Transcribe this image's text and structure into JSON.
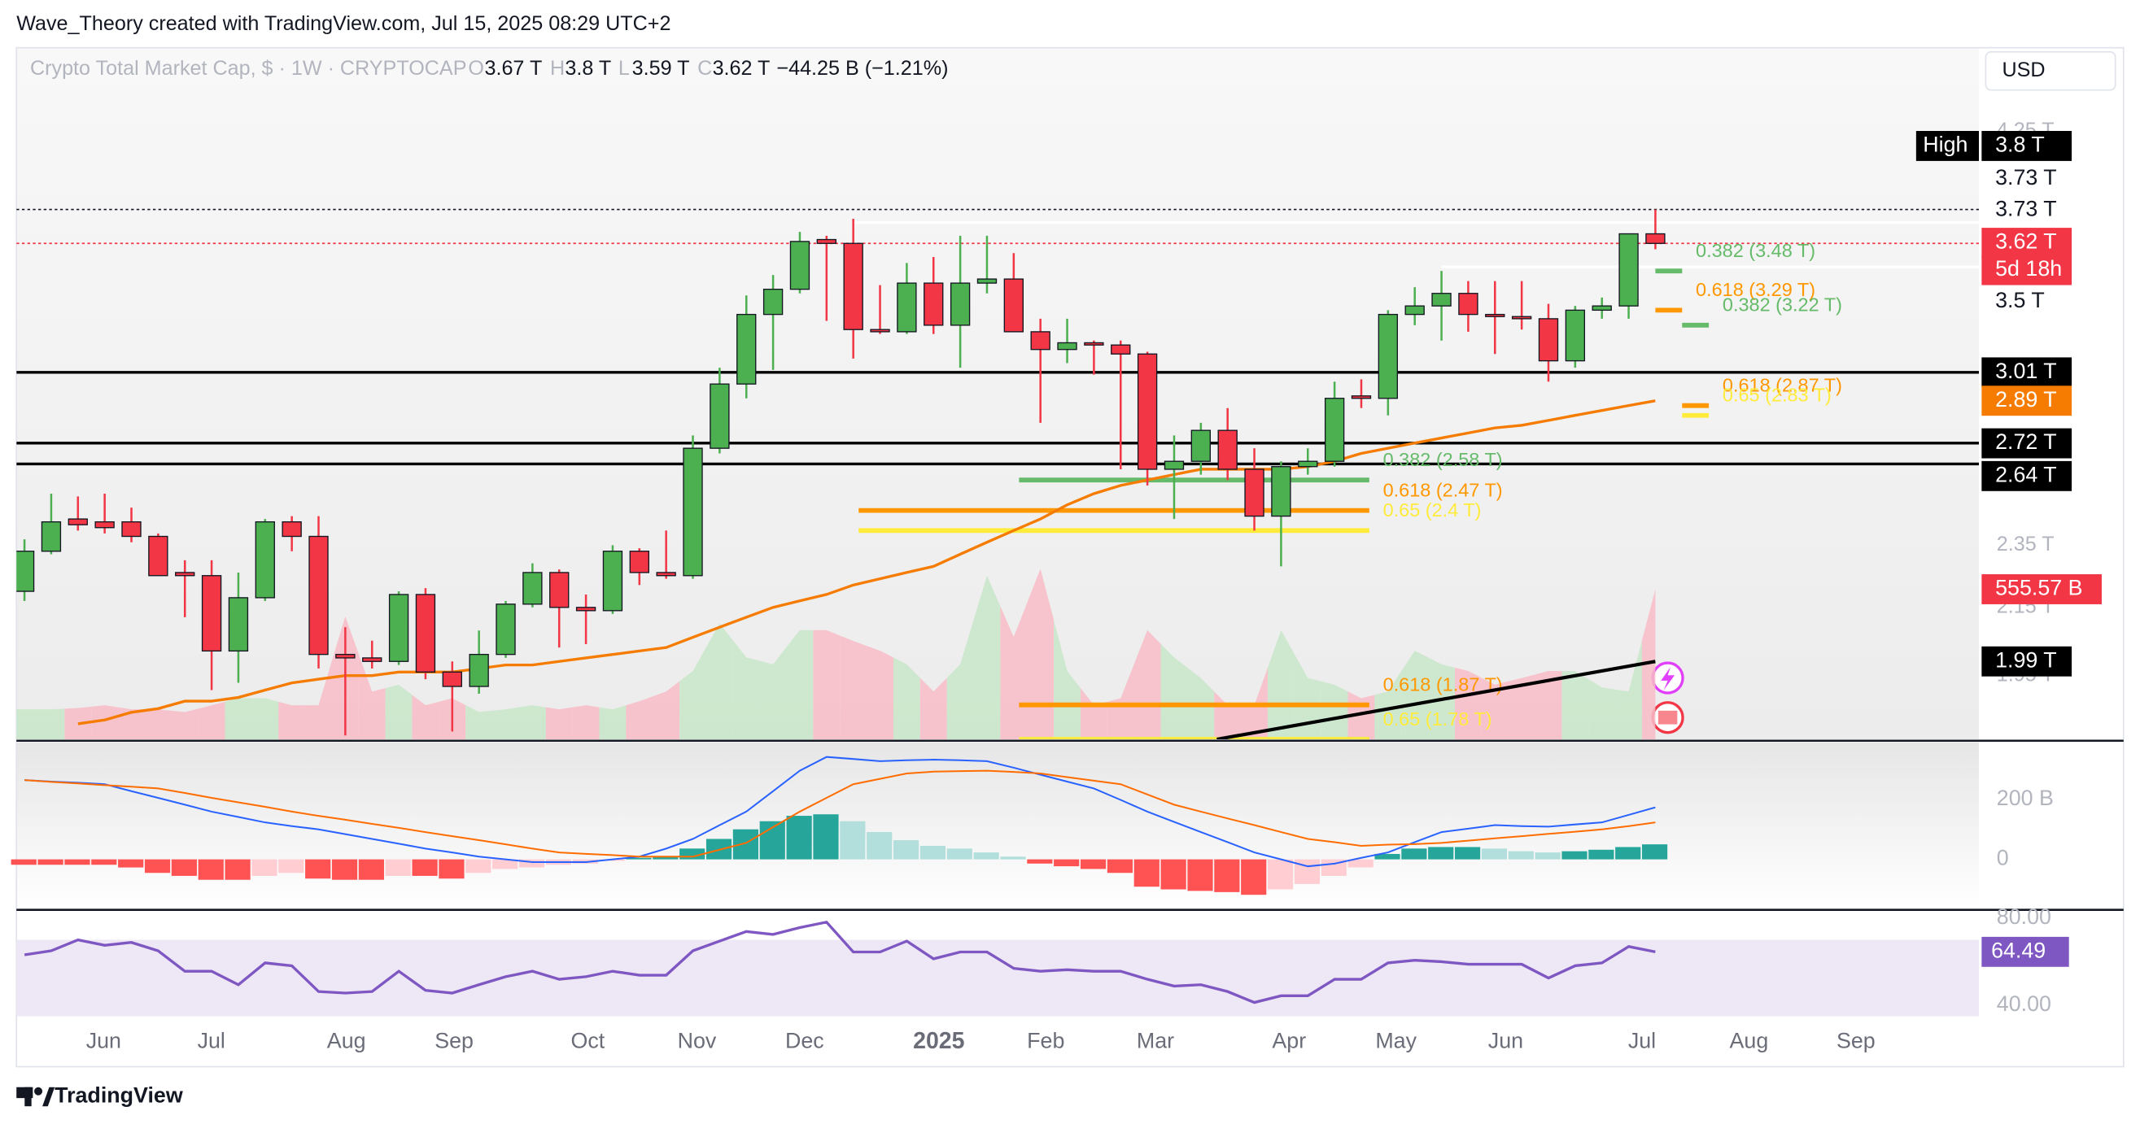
{
  "header": {
    "credit": "Wave_Theory created with TradingView.com, Jul 15, 2025 08:29 UTC+2",
    "brand": "TradingView",
    "currency": "USD"
  },
  "chart_data": {
    "type": "candlestick",
    "log_scale": true,
    "legend": {
      "name": "Crypto Total Market Cap, $ · 1W · CRYPTOCAP",
      "o_key": "O",
      "o": "3.67 T",
      "h_key": "H",
      "h": "3.8 T",
      "l_key": "L",
      "l": "3.59 T",
      "c_key": "C",
      "c": "3.62 T",
      "change": "−44.25 B (−1.21%)"
    },
    "xlim": [
      -0.3,
      73.1
    ],
    "xticks": [
      {
        "value": 2.96,
        "label": "Jun"
      },
      {
        "value": 6.99,
        "label": "Jul"
      },
      {
        "value": 12.04,
        "label": "Aug"
      },
      {
        "value": 16.07,
        "label": "Sep"
      },
      {
        "value": 21.07,
        "label": "Oct"
      },
      {
        "value": 25.15,
        "label": "Nov"
      },
      {
        "value": 29.18,
        "label": "Dec"
      },
      {
        "value": 34.2,
        "label": "2025"
      },
      {
        "value": 38.2,
        "label": "Feb"
      },
      {
        "value": 42.3,
        "label": "Mar"
      },
      {
        "value": 47.3,
        "label": "Apr"
      },
      {
        "value": 51.3,
        "label": "May"
      },
      {
        "value": 55.4,
        "label": "Jun"
      },
      {
        "value": 60.5,
        "label": "Jul"
      },
      {
        "value": 64.5,
        "label": "Aug"
      },
      {
        "value": 68.5,
        "label": "Sep"
      }
    ],
    "ylim": [
      1.78,
      4.79
    ],
    "yticks": [
      {
        "value": 4.25,
        "label": "4.25 T"
      },
      {
        "value": 2.35,
        "label": "2.35 T"
      },
      {
        "value": 2.15,
        "label": "2.15 T"
      },
      {
        "value": 1.95,
        "label": "1.95 T"
      }
    ],
    "up_color": "#4caf50",
    "down_color": "#f23645",
    "open": [
      2.2,
      2.33,
      2.44,
      2.43,
      2.43,
      2.38,
      2.26,
      2.25,
      2.02,
      2.18,
      2.43,
      2.38,
      2.01,
      2.0,
      1.99,
      2.19,
      1.96,
      1.92,
      2.01,
      2.16,
      2.26,
      2.15,
      2.14,
      2.33,
      2.26,
      2.25,
      2.7,
      2.96,
      3.27,
      3.39,
      3.64,
      3.62,
      3.2,
      3.19,
      3.42,
      3.22,
      3.42,
      3.44,
      3.19,
      3.11,
      3.14,
      3.13,
      3.09,
      2.62,
      2.65,
      2.77,
      2.62,
      2.45,
      2.63,
      2.65,
      2.91,
      2.9,
      3.27,
      3.31,
      3.37,
      3.27,
      3.26,
      3.25,
      3.06,
      3.29,
      3.31,
      3.67
    ],
    "high": [
      2.37,
      2.53,
      2.52,
      2.53,
      2.48,
      2.39,
      2.3,
      2.3,
      2.26,
      2.44,
      2.45,
      2.45,
      2.09,
      2.05,
      2.2,
      2.21,
      1.99,
      2.08,
      2.17,
      2.29,
      2.27,
      2.19,
      2.35,
      2.34,
      2.4,
      2.75,
      3.03,
      3.36,
      3.46,
      3.68,
      3.66,
      3.75,
      3.41,
      3.52,
      3.55,
      3.66,
      3.66,
      3.57,
      3.25,
      3.25,
      3.15,
      3.15,
      3.1,
      2.75,
      2.8,
      2.86,
      2.7,
      2.65,
      2.7,
      2.97,
      2.98,
      3.29,
      3.4,
      3.48,
      3.43,
      3.43,
      3.43,
      3.32,
      3.31,
      3.35,
      3.67,
      3.8
    ],
    "low": [
      2.17,
      2.32,
      2.4,
      2.39,
      2.36,
      2.25,
      2.12,
      1.91,
      1.93,
      2.17,
      2.33,
      1.97,
      1.79,
      1.97,
      1.98,
      1.94,
      1.8,
      1.9,
      2.0,
      2.15,
      2.03,
      2.04,
      2.13,
      2.22,
      2.24,
      2.24,
      2.68,
      2.9,
      3.02,
      3.37,
      3.24,
      3.07,
      3.18,
      3.18,
      3.18,
      3.03,
      3.37,
      3.2,
      2.8,
      3.05,
      3.0,
      2.62,
      2.56,
      2.44,
      2.6,
      2.58,
      2.4,
      2.28,
      2.6,
      2.63,
      2.86,
      2.83,
      3.22,
      3.15,
      3.19,
      3.09,
      3.2,
      2.97,
      3.03,
      3.25,
      3.25,
      3.59
    ],
    "close": [
      2.33,
      2.43,
      2.42,
      2.41,
      2.38,
      2.25,
      2.25,
      2.02,
      2.18,
      2.43,
      2.38,
      2.01,
      2.0,
      1.99,
      2.19,
      1.96,
      1.92,
      2.01,
      2.16,
      2.26,
      2.15,
      2.14,
      2.33,
      2.26,
      2.25,
      2.7,
      2.96,
      3.27,
      3.39,
      3.63,
      3.62,
      3.2,
      3.19,
      3.42,
      3.22,
      3.42,
      3.44,
      3.19,
      3.11,
      3.14,
      3.13,
      3.09,
      2.62,
      2.65,
      2.77,
      2.62,
      2.45,
      2.63,
      2.65,
      2.9,
      2.9,
      3.27,
      3.31,
      3.37,
      3.27,
      3.26,
      3.25,
      3.06,
      3.29,
      3.31,
      3.67,
      3.62
    ],
    "ma": {
      "color": "#f57c00",
      "label": "2.89 T",
      "values": [
        null,
        null,
        1.82,
        1.83,
        1.85,
        1.86,
        1.88,
        1.88,
        1.89,
        1.91,
        1.93,
        1.94,
        1.95,
        1.95,
        1.96,
        1.96,
        1.96,
        1.97,
        1.98,
        1.98,
        1.99,
        2.0,
        2.01,
        2.02,
        2.03,
        2.06,
        2.09,
        2.12,
        2.15,
        2.17,
        2.19,
        2.22,
        2.24,
        2.26,
        2.28,
        2.32,
        2.36,
        2.4,
        2.44,
        2.49,
        2.53,
        2.56,
        2.58,
        2.6,
        2.62,
        2.62,
        2.62,
        2.62,
        2.63,
        2.65,
        2.68,
        2.7,
        2.72,
        2.74,
        2.76,
        2.78,
        2.79,
        2.81,
        2.83,
        2.85,
        2.87,
        2.89
      ]
    },
    "trendline": {
      "color": "#000000",
      "label": "1.99 T",
      "x": [
        44.6,
        61
      ],
      "values": [
        1.78,
        1.99
      ]
    },
    "volume": {
      "vlim": [
        0,
        2560
      ],
      "up_color": "#c8e6c9",
      "down_color": "#f8bbc5",
      "label_color": "#f23645",
      "label": "555.57 B",
      "values": [
        111,
        111,
        116,
        126,
        111,
        111,
        101,
        126,
        152,
        152,
        126,
        126,
        455,
        177,
        202,
        126,
        152,
        101,
        111,
        126,
        111,
        126,
        111,
        141,
        177,
        253,
        429,
        303,
        278,
        404,
        404,
        364,
        328,
        278,
        177,
        278,
        606,
        379,
        631,
        253,
        126,
        152,
        404,
        303,
        227,
        126,
        126,
        404,
        227,
        202,
        152,
        177,
        328,
        278,
        253,
        202,
        227,
        253,
        253,
        192,
        177,
        555.57
      ]
    },
    "hlines": [
      {
        "value": 3.8,
        "label": "3.8 T",
        "tag": "High",
        "line": "dotted",
        "line_color": "#131722",
        "badge_bg": "#000000",
        "badge_fg": "#ffffff"
      },
      {
        "value": 3.73,
        "label": "3.73 T",
        "line": "solid",
        "line_color": "#ffffff",
        "from": 31,
        "badge_bg": "#ffffff",
        "badge_fg": "#131722"
      },
      {
        "value": 3.73,
        "label": "3.73 T",
        "line": "none",
        "badge_bg": "#ffffff",
        "badge_fg": "#131722"
      },
      {
        "value": 3.62,
        "label": "3.62 T",
        "sublabel": "5d 18h",
        "line": "dotted",
        "line_color": "#f23645",
        "badge_bg": "#f23645",
        "badge_fg": "#ffffff"
      },
      {
        "value": 3.5,
        "label": "3.5 T",
        "line": "solid",
        "line_color": "#ffffff",
        "from": 53,
        "badge_bg": "#ffffff",
        "badge_fg": "#131722"
      },
      {
        "value": 3.01,
        "label": "3.01 T",
        "line": "solid",
        "line_color": "#000000",
        "badge_bg": "#000000",
        "badge_fg": "#ffffff"
      },
      {
        "value": 2.72,
        "label": "2.72 T",
        "line": "solid",
        "line_color": "#000000",
        "badge_bg": "#000000",
        "badge_fg": "#ffffff"
      },
      {
        "value": 2.64,
        "label": "2.64 T",
        "line": "solid",
        "line_color": "#000000",
        "badge_bg": "#000000",
        "badge_fg": "#ffffff"
      }
    ],
    "levels": [
      {
        "label": "0.382 (3.48 T)",
        "value": 3.48,
        "color": "#66bb6a",
        "from": 61,
        "to": 62
      },
      {
        "label": "0.618 (3.29 T)",
        "value": 3.29,
        "color": "#ff9800",
        "from": 61,
        "to": 62
      },
      {
        "label": "0.382 (3.22 T)",
        "value": 3.22,
        "color": "#66bb6a",
        "from": 62,
        "to": 63
      },
      {
        "label": "0.618 (2.87 T)",
        "value": 2.87,
        "color": "#ff9800",
        "from": 62,
        "to": 63
      },
      {
        "label": "0.65 (2.83 T)",
        "value": 2.83,
        "color": "#ffeb3b",
        "from": 62,
        "to": 63
      },
      {
        "label": "0.382 (2.58 T)",
        "value": 2.58,
        "color": "#66bb6a",
        "from": 37.2,
        "to": 50.3
      },
      {
        "label": "0.618 (2.47 T)",
        "value": 2.47,
        "color": "#ff9800",
        "from": 31.2,
        "to": 50.3
      },
      {
        "label": "0.65 (2.4 T)",
        "value": 2.4,
        "color": "#ffeb3b",
        "from": 31.2,
        "to": 50.3
      },
      {
        "label": "0.618 (1.87 T)",
        "value": 1.87,
        "color": "#ff9800",
        "from": 37.2,
        "to": 50.3
      },
      {
        "label": "0.65 (1.78 T)",
        "value": 1.78,
        "color": "#ffeb3b",
        "from": 37.2,
        "to": 50.3
      }
    ],
    "macd": {
      "ylim": [
        -159,
        386
      ],
      "yticks": [
        0,
        {
          "value": 200,
          "label": "200 B"
        }
      ],
      "macd_color": "#2962ff",
      "signal_color": "#ff6d00",
      "hist_colors": {
        "up_grow": "#26a69a",
        "up_fall": "#b2dfdb",
        "down_grow": "#ff5252",
        "down_fall": "#ffcdd2"
      },
      "macd": [
        264,
        259,
        255,
        250,
        227,
        205,
        182,
        159,
        141,
        123,
        111,
        100,
        84,
        68,
        52,
        36,
        23,
        9,
        0,
        -9,
        -9,
        -9,
        0,
        9,
        36,
        68,
        114,
        159,
        227,
        295,
        341,
        334,
        327,
        330,
        332,
        330,
        327,
        305,
        282,
        259,
        236,
        198,
        159,
        125,
        91,
        57,
        23,
        0,
        -23,
        -14,
        5,
        23,
        57,
        91,
        102,
        114,
        111,
        109,
        116,
        123,
        148,
        173
      ],
      "signal": [
        264,
        258,
        253,
        247,
        242,
        236,
        221,
        205,
        190,
        175,
        159,
        145,
        132,
        118,
        105,
        91,
        77,
        64,
        50,
        36,
        23,
        18,
        14,
        9,
        9,
        9,
        32,
        55,
        107,
        159,
        205,
        250,
        268,
        286,
        292,
        294,
        295,
        291,
        286,
        274,
        262,
        250,
        216,
        182,
        159,
        136,
        114,
        91,
        68,
        57,
        45,
        49,
        51,
        55,
        62,
        70,
        77,
        85,
        92,
        100,
        111,
        123
      ],
      "hist": [
        -18,
        -18,
        -18,
        -18,
        -27,
        -45,
        -55,
        -68,
        -68,
        -55,
        -45,
        -64,
        -68,
        -68,
        -55,
        -55,
        -64,
        -45,
        -32,
        -27,
        -18,
        -14,
        -5,
        5,
        9,
        36,
        68,
        100,
        127,
        145,
        150,
        127,
        91,
        64,
        45,
        36,
        23,
        9,
        -14,
        -23,
        -32,
        -45,
        -91,
        -100,
        -105,
        -109,
        -118,
        -100,
        -82,
        -55,
        -27,
        18,
        36,
        41,
        41,
        36,
        27,
        23,
        27,
        32,
        41,
        50
      ]
    },
    "rsi": {
      "ylim": [
        35.0,
        83.1
      ],
      "yticks": [
        {
          "value": 80,
          "label": "80.00"
        },
        {
          "value": 40,
          "label": "40.00"
        }
      ],
      "band": [
        30,
        70
      ],
      "color": "#7e57c2",
      "band_color": "#ede7f6",
      "label": "64.49",
      "values": [
        63.1,
        65.0,
        70.0,
        67.5,
        68.8,
        65.0,
        55.6,
        55.6,
        49.4,
        59.4,
        58.1,
        46.3,
        45.6,
        46.3,
        55.6,
        46.9,
        45.6,
        49.4,
        53.1,
        55.6,
        51.9,
        53.1,
        55.6,
        53.8,
        53.8,
        65.0,
        69.4,
        73.8,
        72.5,
        75.6,
        78.1,
        64.4,
        64.4,
        69.4,
        61.3,
        64.4,
        64.4,
        56.9,
        55.6,
        56.3,
        55.6,
        55.6,
        51.9,
        48.8,
        49.4,
        46.3,
        41.3,
        44.4,
        44.4,
        51.9,
        51.9,
        59.4,
        60.6,
        60.0,
        58.8,
        58.8,
        58.8,
        52.5,
        58.1,
        59.4,
        66.9,
        64.49
      ]
    }
  }
}
